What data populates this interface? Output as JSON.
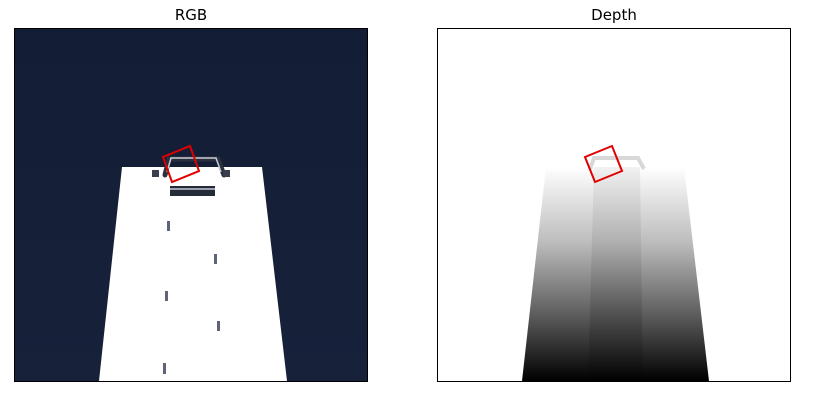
{
  "panels": [
    {
      "title": "RGB"
    },
    {
      "title": "Depth"
    }
  ],
  "colors": {
    "rgb_background": "#141f38",
    "table_surface": "#ffffff",
    "object_dark": "#262b38",
    "marker_gray": "#5e6377",
    "grasp_box": "#e00000"
  },
  "icons": {
    "grasp_rectangle": "red-rotated-rectangle"
  }
}
